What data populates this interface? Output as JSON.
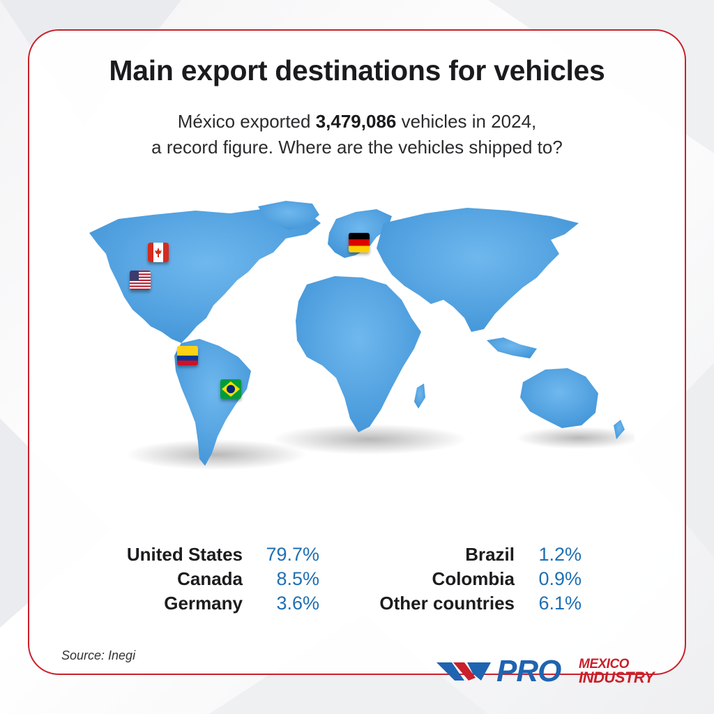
{
  "header": {
    "title": "Main export destinations for vehicles",
    "subtitle_prefix": "México exported ",
    "subtitle_total": "3,479,086",
    "subtitle_suffix": " vehicles in 2024,",
    "subtitle_line2": "a record figure. Where are the vehicles shipped to?"
  },
  "map": {
    "land_color": "#4a9fde",
    "flags": [
      {
        "country": "Canada",
        "icon": "canada-flag-icon"
      },
      {
        "country": "United States",
        "icon": "usa-flag-icon"
      },
      {
        "country": "Germany",
        "icon": "germany-flag-icon"
      },
      {
        "country": "Colombia",
        "icon": "colombia-flag-icon"
      },
      {
        "country": "Brazil",
        "icon": "brazil-flag-icon"
      }
    ]
  },
  "destinations": {
    "left": [
      {
        "name": "United States",
        "value": "79.7%"
      },
      {
        "name": "Canada",
        "value": "8.5%"
      },
      {
        "name": "Germany",
        "value": "3.6%"
      }
    ],
    "right": [
      {
        "name": "Brazil",
        "value": "1.2%"
      },
      {
        "name": "Colombia",
        "value": "0.9%"
      },
      {
        "name": "Other countries",
        "value": "6.1%"
      }
    ]
  },
  "source": "Source: Inegi",
  "logo": {
    "pro": "PRO",
    "mexico": "MEXICO",
    "industry": "INDUSTRY"
  },
  "colors": {
    "accent_red": "#c9202a",
    "brand_blue": "#1f64b0",
    "value_blue": "#1f6fb3"
  }
}
